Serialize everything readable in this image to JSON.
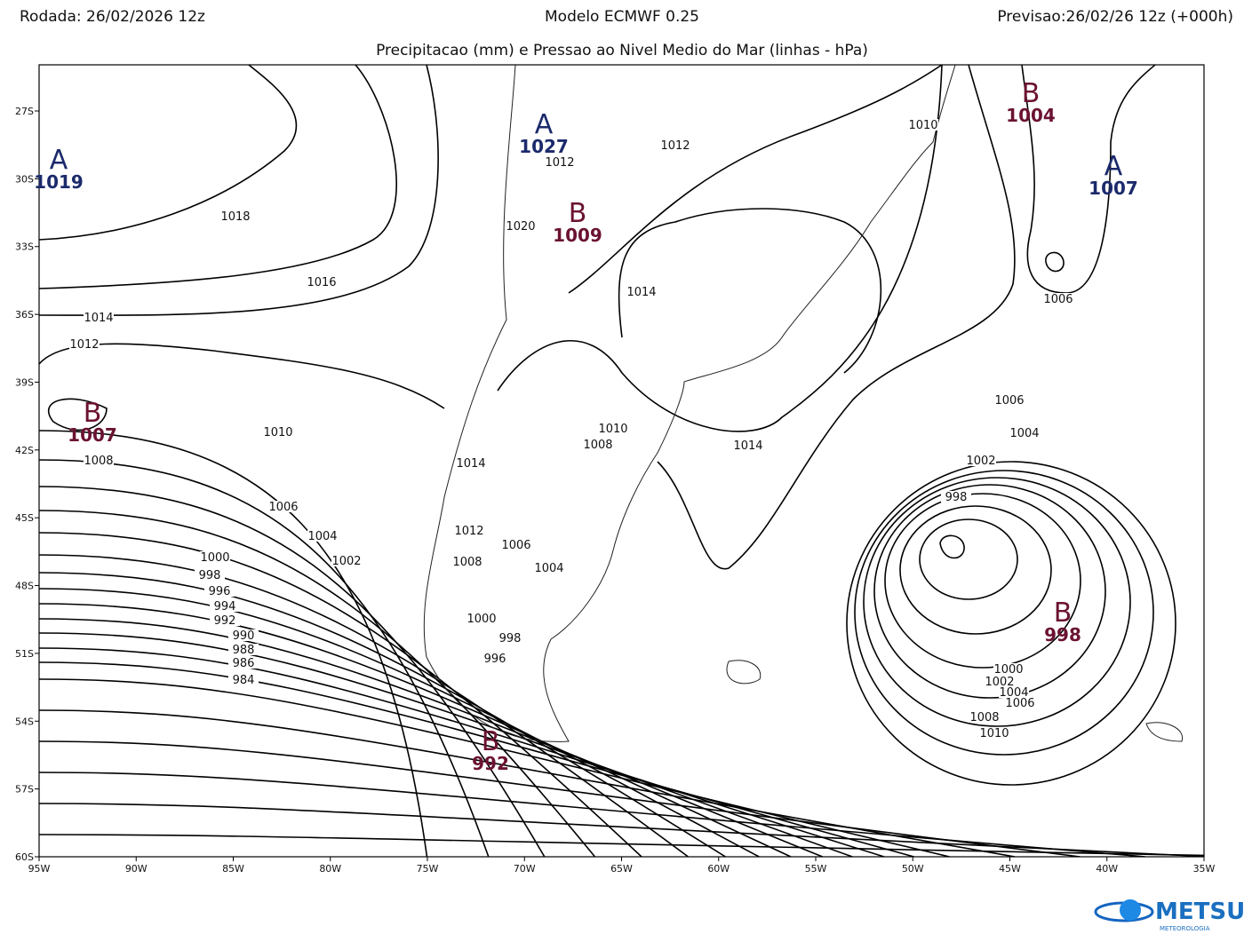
{
  "header": {
    "run": "Rodada: 26/02/2026 12z",
    "model": "Modelo ECMWF 0.25",
    "forecast": "Previsao:26/02/26 12z (+000h)",
    "subtitle": "Precipitacao (mm) e Pressao ao Nivel Medio do Mar (linhas - hPa)"
  },
  "axes": {
    "y_labels": [
      "27S",
      "30S",
      "33S",
      "36S",
      "39S",
      "42S",
      "45S",
      "48S",
      "51S",
      "54S",
      "57S",
      "60S"
    ],
    "x_labels": [
      "95W",
      "90W",
      "85W",
      "80W",
      "75W",
      "70W",
      "65W",
      "60W",
      "55W",
      "50W",
      "45W",
      "40W",
      "35W"
    ]
  },
  "centers": [
    {
      "letter": "A",
      "value": "1019"
    },
    {
      "letter": "B",
      "value": "1004"
    },
    {
      "letter": "A",
      "value": "1007"
    },
    {
      "letter": "A",
      "value": "1027"
    },
    {
      "letter": "B",
      "value": "1009"
    },
    {
      "letter": "B",
      "value": "1007"
    },
    {
      "letter": "B",
      "value": "998"
    },
    {
      "letter": "B",
      "value": "992"
    }
  ],
  "isobar_labels": [
    "1018",
    "1016",
    "1014",
    "1012",
    "1010",
    "1008",
    "1006",
    "1004",
    "1002",
    "1000",
    "998",
    "996",
    "994",
    "992",
    "990",
    "988",
    "986",
    "984",
    "1012",
    "1014",
    "1014",
    "1010",
    "1006",
    "1006",
    "1004",
    "1002",
    "998",
    "1000",
    "1002",
    "1004",
    "1006",
    "1008",
    "1010",
    "1012",
    "1020",
    "1010",
    "1008",
    "1014",
    "1006",
    "1004",
    "1000",
    "998",
    "996",
    "1012",
    "1008"
  ],
  "logo": {
    "name": "METSUL",
    "sub": "METEOROLOGIA"
  }
}
